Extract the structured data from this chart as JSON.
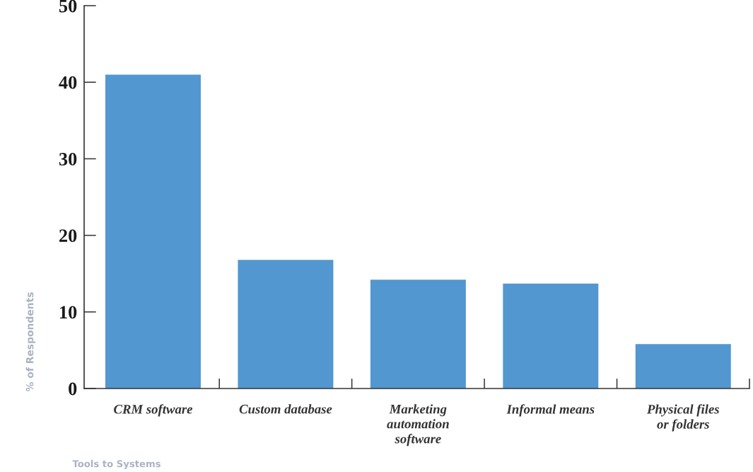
{
  "chart_data": {
    "type": "bar",
    "categories": [
      "CRM software",
      "Custom database",
      "Marketing\nautomation\nsoftware",
      "Informal means",
      "Physical files\nor folders"
    ],
    "values": [
      41,
      16.8,
      14.2,
      13.7,
      5.8
    ],
    "color": "#5297d0",
    "ylim": [
      0,
      50
    ],
    "yticks": [
      0,
      10,
      20,
      30,
      40,
      50
    ],
    "ylabel": "% of Respondents",
    "xlabel": "Tools to Systems"
  }
}
